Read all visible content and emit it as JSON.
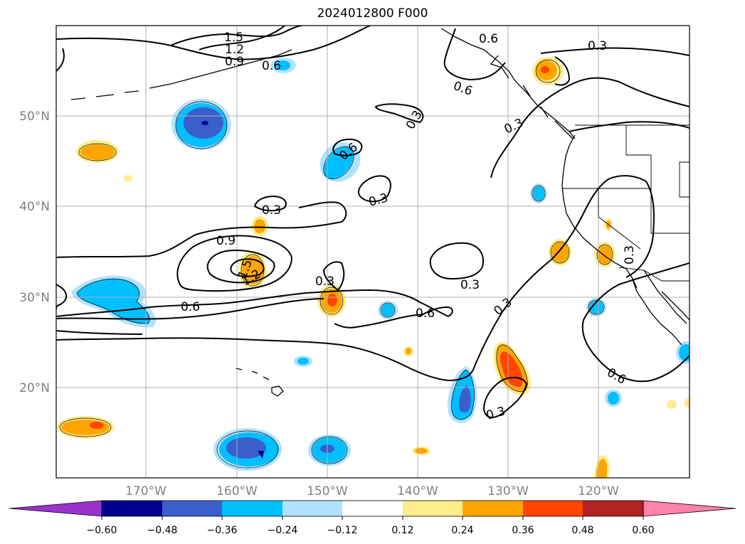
{
  "title": "2024012800 F000",
  "latitude_labels": [
    "50°N",
    "40°N",
    "30°N",
    "20°N"
  ],
  "longitude_labels": [
    "170°W",
    "160°W",
    "150°W",
    "140°W",
    "130°W",
    "120°W"
  ],
  "contour_labels": [
    "1.5",
    "1.2",
    "0.9",
    "0.6",
    "0.6",
    "0.6",
    "0.3",
    "0.6",
    "0.3",
    "0.3",
    "0.3",
    "0.9",
    "1.5",
    "1.2",
    "0.3",
    "0.6",
    "0.3",
    "0.6",
    "0.3",
    "0.3",
    "0.3",
    "0.3",
    "0.6"
  ],
  "colorbar": {
    "ticks": [
      "−0.60",
      "−0.48",
      "−0.36",
      "−0.24",
      "−0.12",
      "0.12",
      "0.24",
      "0.36",
      "0.48",
      "0.60"
    ],
    "colors": {
      "lt_neg_060": "#9933cc",
      "neg_060_048": "#000090",
      "neg_048_036": "#3a5fcd",
      "neg_036_024": "#00bfff",
      "neg_024_012": "#b0e2ff",
      "neg_012_012": "#ffffff",
      "pos_012_024": "#ffec8b",
      "pos_024_036": "#ffa500",
      "pos_036_048": "#ff4500",
      "pos_048_060": "#b22222",
      "gt_060": "#ff82ab"
    }
  }
}
